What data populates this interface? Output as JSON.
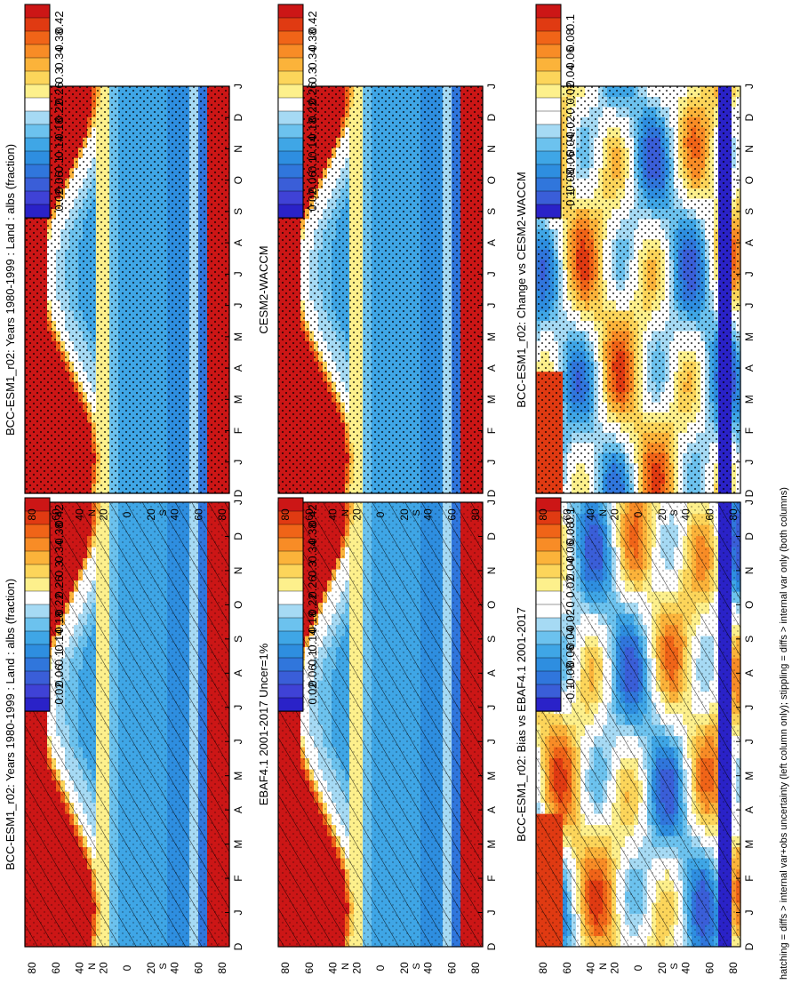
{
  "footer": "hatching = diffs > internal var+obs uncertainty (left column only); stippling = diffs > internal var only (both columns)",
  "axes": {
    "months": [
      "D",
      "J",
      "F",
      "M",
      "A",
      "M",
      "J",
      "J",
      "A",
      "S",
      "O",
      "N",
      "D",
      "J"
    ],
    "lat_ticks": [
      "80",
      "60",
      "40",
      "20",
      "0",
      "20",
      "40",
      "60",
      "80"
    ],
    "lat_markers": [
      "N",
      "S"
    ]
  },
  "colorbars": {
    "absolute": [
      "0.42",
      "0.38",
      "0.34",
      "0.3",
      "0.26",
      "0.22",
      "0.18",
      "0.14",
      "0.1",
      "0.06",
      "0.02"
    ],
    "difference": [
      "0.1",
      "0.08",
      "0.06",
      "0.04",
      "0.02",
      "0",
      "-0.02",
      "-0.04",
      "-0.06",
      "-0.08",
      "-0.1"
    ]
  },
  "colors": {
    "absolute_scale": [
      "#cc1616",
      "#e03a12",
      "#f06418",
      "#f88c26",
      "#fbb33a",
      "#fcd55a",
      "#fdf08c",
      "#ffffff",
      "#a6daf4",
      "#6cc2ee",
      "#3fa6e6",
      "#2e8ee0",
      "#3076dc",
      "#3a5ed8",
      "#3f42d6",
      "#2a22c8"
    ],
    "difference_scale": [
      "#cc1616",
      "#e03a12",
      "#f06418",
      "#f88c26",
      "#fbb33a",
      "#fcd55a",
      "#fdf08c",
      "#ffffff",
      "#ffffff",
      "#a6daf4",
      "#6cc2ee",
      "#3fa6e6",
      "#2e8ee0",
      "#3076dc",
      "#3a5ed8",
      "#2a22c8"
    ]
  },
  "chart_data": [
    {
      "panel": "left-top",
      "type": "heatmap",
      "title": "BCC-ESM1_r02: Years 1980-1999 : Land : albs (fraction)",
      "x": "month (D to J)",
      "y": "latitude (80N to 80S)",
      "color_range": [
        0.02,
        0.42
      ],
      "overlay": "hatching + stippling"
    },
    {
      "panel": "left-middle",
      "type": "heatmap",
      "title": "EBAF4.1 2001-2017 Uncer=1%",
      "x": "month (D to J)",
      "y": "latitude (80N to 80S)",
      "color_range": [
        0.02,
        0.42
      ],
      "overlay": "hatching"
    },
    {
      "panel": "left-bottom",
      "type": "heatmap",
      "title": "BCC-ESM1_r02: Bias vs EBAF4.1 2001-2017",
      "x": "month (D to J)",
      "y": "latitude (80N to 80S)",
      "color_range": [
        -0.1,
        0.1
      ],
      "overlay": "hatching + stippling"
    },
    {
      "panel": "right-top",
      "type": "heatmap",
      "title": "BCC-ESM1_r02: Years 1980-1999 : Land : albs (fraction)",
      "x": "month (D to J)",
      "y": "latitude (80N to 80S)",
      "color_range": [
        0.02,
        0.42
      ],
      "overlay": "stippling"
    },
    {
      "panel": "right-middle",
      "type": "heatmap",
      "title": "CESM2-WACCM",
      "x": "month (D to J)",
      "y": "latitude (80N to 80S)",
      "color_range": [
        0.02,
        0.42
      ],
      "overlay": "stippling"
    },
    {
      "panel": "right-bottom",
      "type": "heatmap",
      "title": "BCC-ESM1_r02: Change vs CESM2-WACCM",
      "x": "month (D to J)",
      "y": "latitude (80N to 80S)",
      "color_range": [
        -0.1,
        0.1
      ],
      "overlay": "stippling"
    }
  ]
}
